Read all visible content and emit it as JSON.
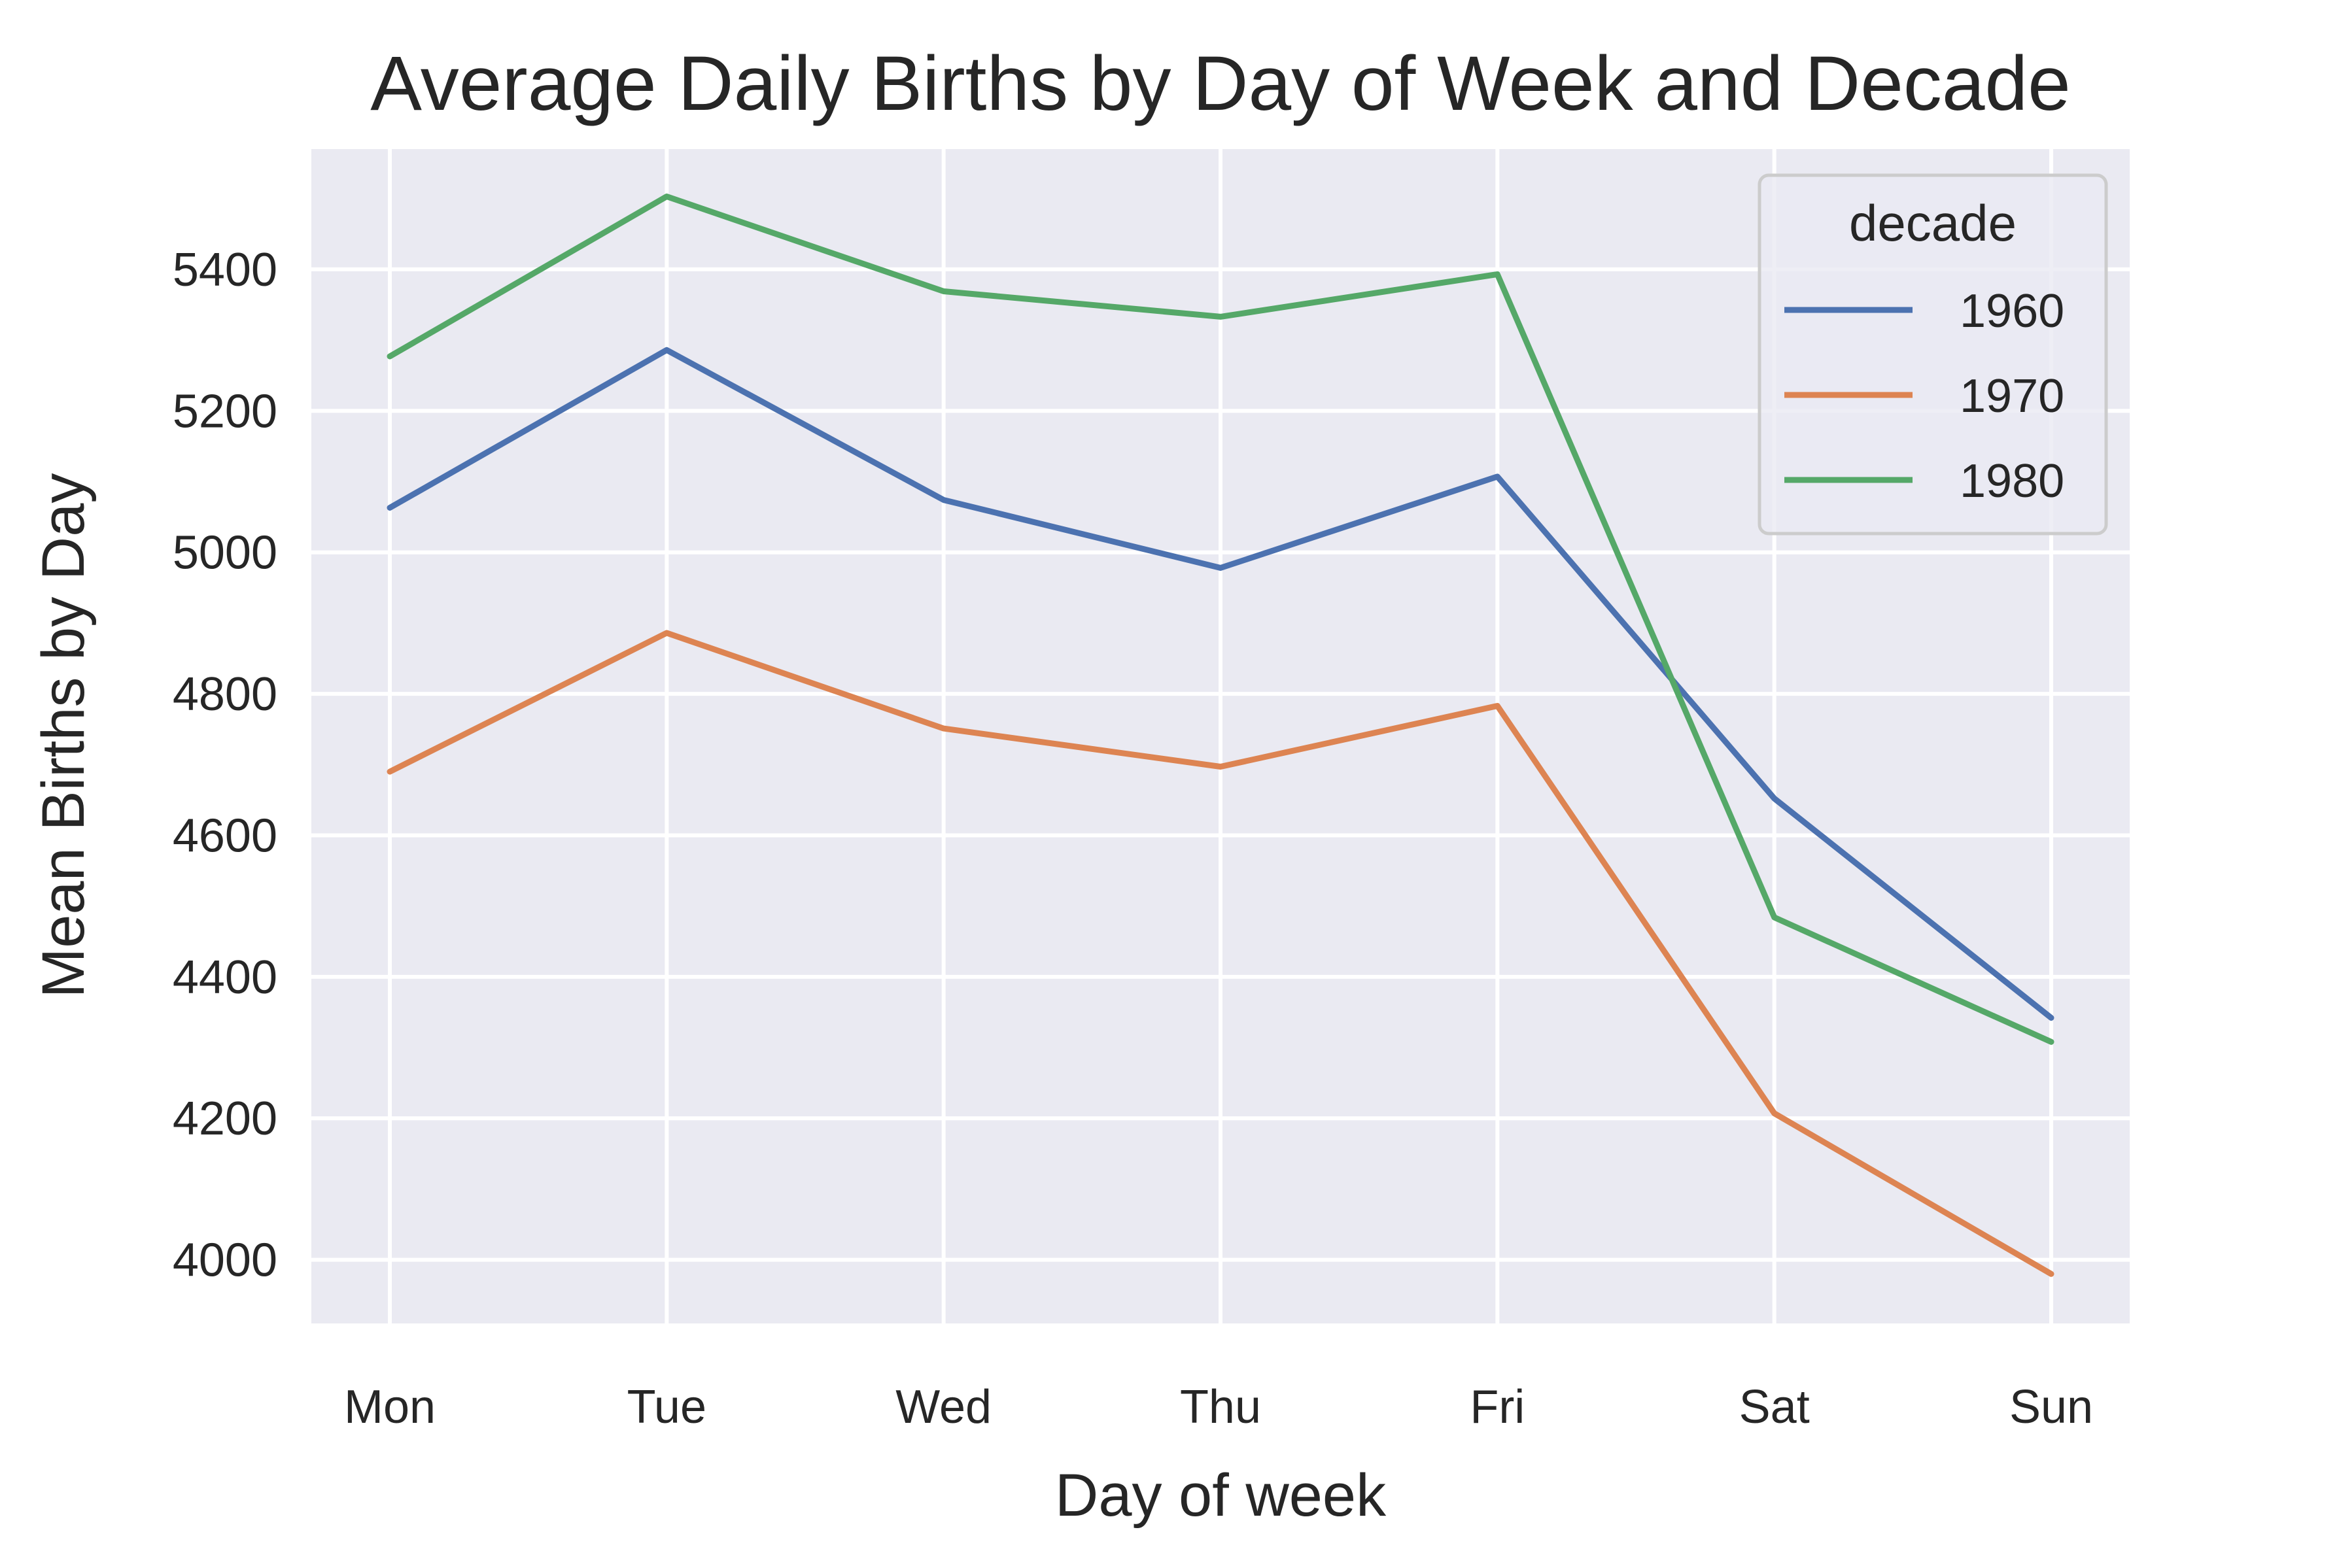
{
  "chart_data": {
    "type": "line",
    "title": "Average Daily Births by Day of Week and Decade",
    "xlabel": "Day of week",
    "ylabel": "Mean Births by Day",
    "categories": [
      "Mon",
      "Tue",
      "Wed",
      "Thu",
      "Fri",
      "Sat",
      "Sun"
    ],
    "ylim": [
      3910,
      5570
    ],
    "yticks": [
      4000,
      4200,
      4400,
      4600,
      4800,
      5000,
      5200,
      5400
    ],
    "grid": true,
    "background_color": "#eaeaf2",
    "grid_color": "#ffffff",
    "legend": {
      "title": "decade",
      "placement": "top-right"
    },
    "series": [
      {
        "name": "1960",
        "color": "#4c72b0",
        "values": [
          5063,
          5286,
          5074,
          4978,
          5107,
          4652,
          4342
        ]
      },
      {
        "name": "1970",
        "color": "#dd8452",
        "values": [
          4690,
          4886,
          4751,
          4697,
          4783,
          4207,
          3980
        ]
      },
      {
        "name": "1980",
        "color": "#55a868",
        "values": [
          5277,
          5503,
          5369,
          5333,
          5393,
          4484,
          4308
        ]
      }
    ]
  }
}
